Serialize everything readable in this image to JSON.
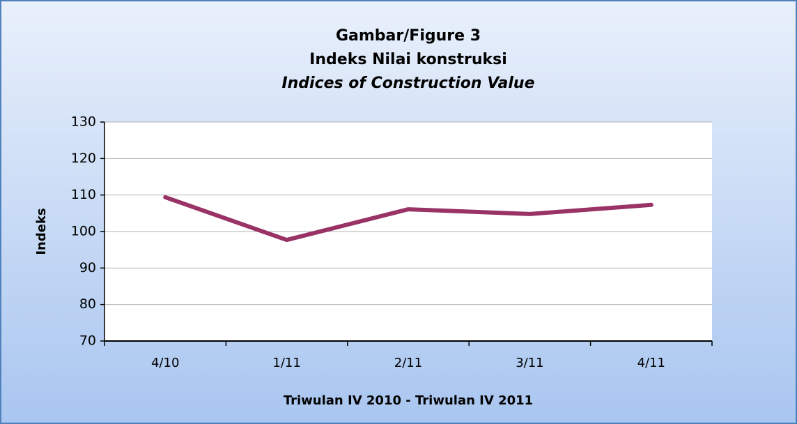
{
  "chart_data": {
    "type": "line",
    "title": "Gambar/Figure 3",
    "subtitle": "Indeks Nilai konstruksi",
    "subtitle_en": "Indices of Construction Value",
    "xlabel": "Triwulan IV 2010 - Triwulan IV 2011",
    "ylabel": "Indeks",
    "categories": [
      "4/10",
      "1/11",
      "2/11",
      "3/11",
      "4/11"
    ],
    "series": [
      {
        "name": "Indeks",
        "color": "#993366",
        "values": [
          109.4,
          97.7,
          106.1,
          104.8,
          107.3
        ]
      }
    ],
    "ylim": [
      70,
      130
    ],
    "yticks": [
      70,
      80,
      90,
      100,
      110,
      120,
      130
    ],
    "grid": true
  }
}
